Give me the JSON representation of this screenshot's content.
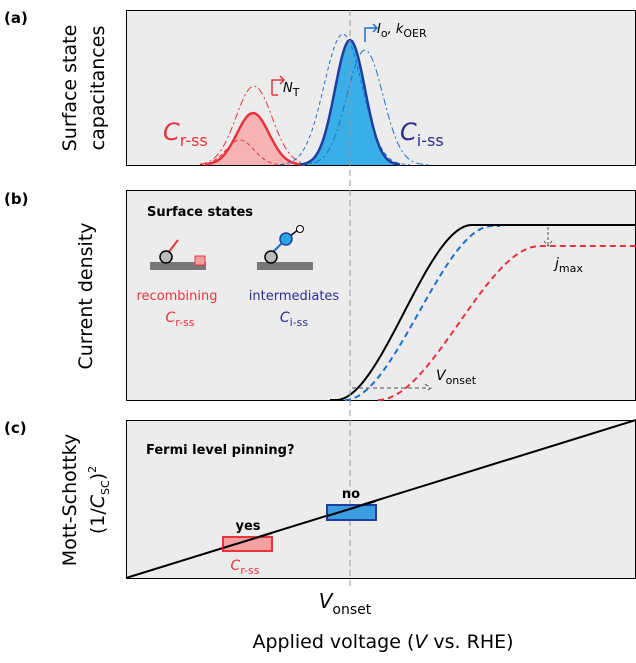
{
  "panels": [
    {
      "label": "(a)",
      "y_label": [
        "Surface state",
        "capacitances"
      ],
      "red_peak": {
        "main": "C",
        "sub": "r-ss"
      },
      "blue_peak": {
        "main": "C",
        "sub": "i-ss"
      },
      "red_arrow": {
        "main": "N",
        "sub": "T"
      },
      "blue_arrow": {
        "main1": "I",
        "sub1": "o",
        "main2": ", k",
        "sub2": "OER"
      }
    },
    {
      "label": "(b)",
      "y_label": [
        "Current density"
      ],
      "inset_title": "Surface states",
      "recombining": {
        "text": "recombining",
        "main": "C",
        "sub": "r-ss"
      },
      "intermediates": {
        "text": "intermediates",
        "main": "C",
        "sub": "i-ss"
      },
      "jmax": {
        "main": "j",
        "sub": "max"
      },
      "vonset": {
        "main": "V",
        "sub": "onset"
      }
    },
    {
      "label": "(c)",
      "y_label": [
        "Mott-Schottky"
      ],
      "y_label2": {
        "a": "(1/",
        "b": "C",
        "c": "SC",
        "d": ")",
        "e": "2"
      },
      "question": "Fermi level pinning?",
      "yes": "yes",
      "no": "no",
      "yes_c": {
        "main": "C",
        "sub": "r-ss"
      }
    }
  ],
  "x_marker": {
    "main": "V",
    "sub": "onset"
  },
  "x_label": {
    "a": "Applied voltage (",
    "b": "V",
    "c": " vs. RHE)"
  }
}
